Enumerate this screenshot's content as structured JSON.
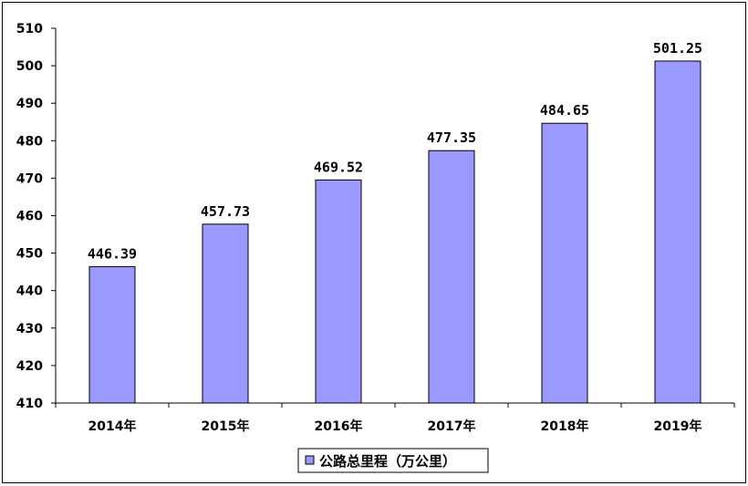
{
  "chart_data": {
    "type": "bar",
    "title": "",
    "xlabel": "",
    "ylabel": "",
    "categories": [
      "2014年",
      "2015年",
      "2016年",
      "2017年",
      "2018年",
      "2019年"
    ],
    "series": [
      {
        "name": "公路总里程（万公里）",
        "values": [
          446.39,
          457.73,
          469.52,
          477.35,
          484.65,
          501.25
        ],
        "value_labels": [
          "446.39",
          "457.73",
          "469.52",
          "477.35",
          "484.65",
          "501.25"
        ]
      }
    ],
    "yticks": [
      410,
      420,
      430,
      440,
      450,
      460,
      470,
      480,
      490,
      500,
      510
    ],
    "ylim": [
      410,
      510
    ],
    "bar_color": "#9999FF",
    "bar_edge_color": "#000000",
    "grid": false,
    "legend_position": "bottom"
  }
}
